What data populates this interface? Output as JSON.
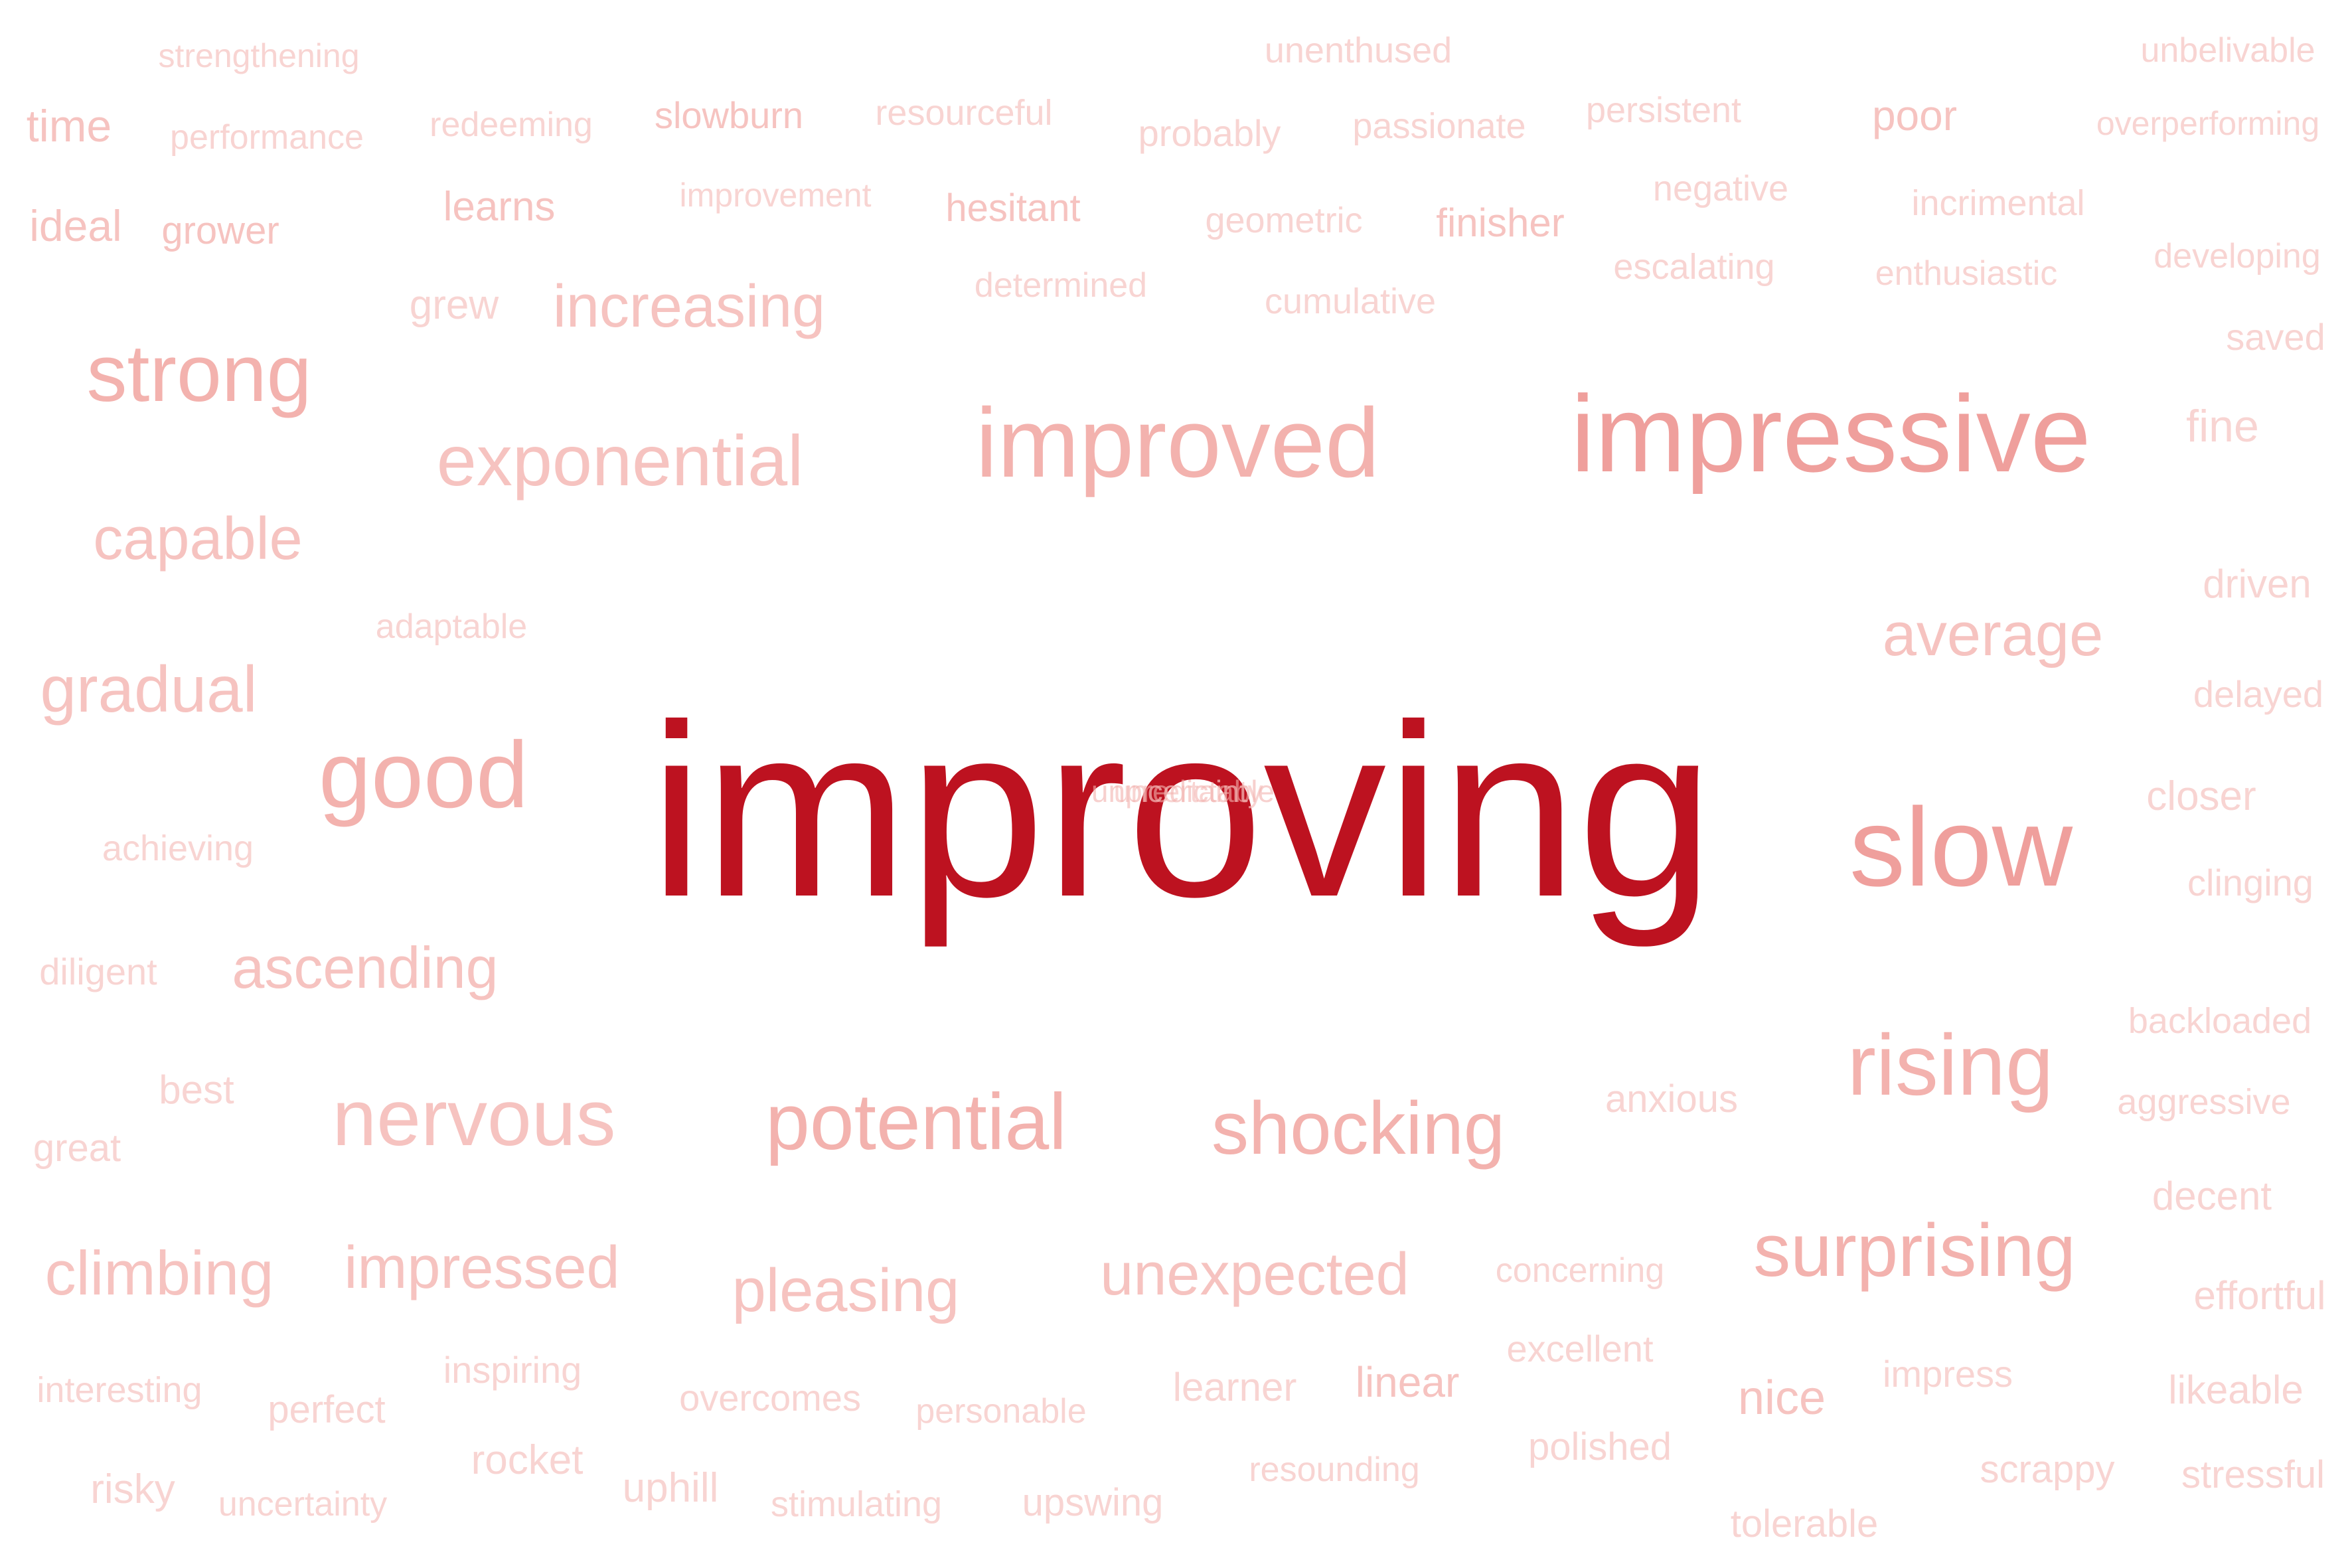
{
  "title": "",
  "colors": {
    "background": "#ffffff",
    "main": "#bd1220",
    "medium": "#ef9f9c",
    "light": "#f3b2ae",
    "lighter": "#f6c3c0",
    "faint": "#f8d4d2"
  },
  "words": [
    "strengthening",
    "unenthused",
    "unbelivable",
    "time",
    "performance",
    "redeeming",
    "slowburn",
    "resourceful",
    "probably",
    "passionate",
    "persistent",
    "poor",
    "overperforming",
    "ideal",
    "grower",
    "learns",
    "improvement",
    "hesitant",
    "geometric",
    "finisher",
    "negative",
    "incrimental",
    "developing",
    "grew",
    "increasing",
    "determined",
    "cumulative",
    "escalating",
    "enthusiastic",
    "saved",
    "strong",
    "exponential",
    "improved",
    "impressive",
    "fine",
    "capable",
    "driven",
    "adaptable",
    "average",
    "gradual",
    "delayed",
    "good",
    "improving",
    "slow",
    "closer",
    "achieving",
    "clinging",
    "diligent",
    "ascending",
    "backloaded",
    "best",
    "nervous",
    "potential",
    "shocking",
    "anxious",
    "rising",
    "aggressive",
    "great",
    "decent",
    "climbing",
    "impressed",
    "pleasing",
    "unexpected",
    "concerning",
    "surprising",
    "effortful",
    "interesting",
    "perfect",
    "inspiring",
    "overcomes",
    "personable",
    "learner",
    "linear",
    "excellent",
    "nice",
    "impress",
    "likeable",
    "rocket",
    "risky",
    "uncertainty",
    "uphill",
    "stimulating",
    "upswing",
    "resounding",
    "polished",
    "scrappy",
    "stressful",
    "tolerable",
    "unpredictably"
  ]
}
